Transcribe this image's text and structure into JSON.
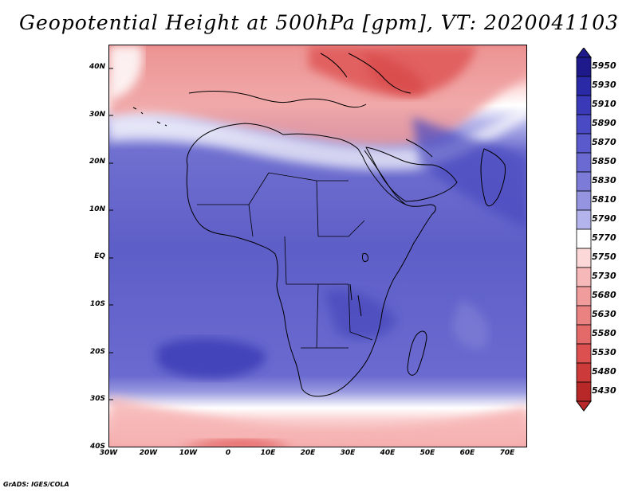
{
  "title": "Geopotential Height at 500hPa [gpm], VT: 2020041103",
  "credit": "GrADS: IGES/COLA",
  "map": {
    "region": "Africa and surrounding oceans",
    "lon_range": [
      -30,
      75
    ],
    "lat_range": [
      -40,
      45
    ],
    "y_ticks": [
      "40N",
      "30N",
      "20N",
      "10N",
      "EQ",
      "10S",
      "20S",
      "30S",
      "40S"
    ],
    "x_ticks": [
      "30W",
      "20W",
      "10W",
      "0",
      "10E",
      "20E",
      "30E",
      "40E",
      "50E",
      "60E",
      "70E"
    ]
  },
  "colorbar": {
    "levels": [
      "5950",
      "5930",
      "5910",
      "5890",
      "5870",
      "5850",
      "5830",
      "5810",
      "5790",
      "5770",
      "5750",
      "5730",
      "5680",
      "5630",
      "5580",
      "5530",
      "5480",
      "5430"
    ],
    "colors": [
      "#1e1a8c",
      "#2a2aa6",
      "#3a3ab8",
      "#4a4ac4",
      "#5a5acc",
      "#6a6ad2",
      "#7c7cd8",
      "#9494e0",
      "#b4b4ec",
      "#ffffff",
      "#fcd8d8",
      "#f6b8b8",
      "#f09c9c",
      "#ea8282",
      "#e46a6a",
      "#dc5050",
      "#cc3a3a",
      "#b82828"
    ]
  }
}
